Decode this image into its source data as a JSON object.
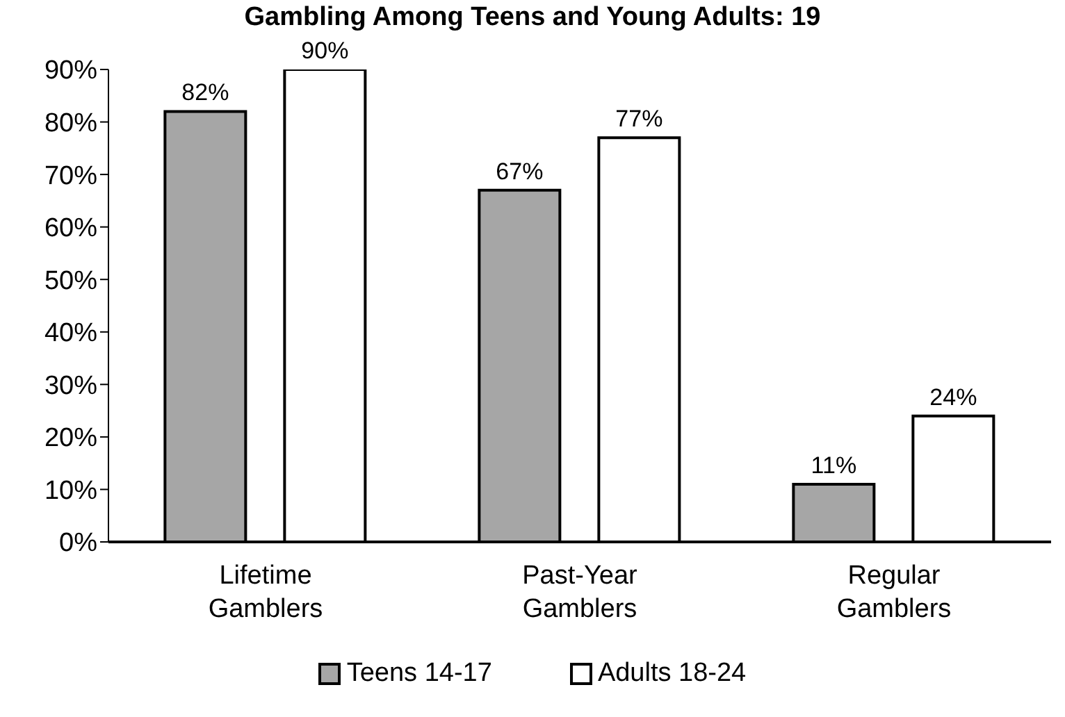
{
  "chart_data": {
    "type": "bar",
    "title": "Gambling Among Teens and Young Adults: 19",
    "categories": [
      "Lifetime Gamblers",
      "Past-Year Gamblers",
      "Regular Gamblers"
    ],
    "series": [
      {
        "name": "Teens 14-17",
        "color": "#a6a6a6",
        "values": [
          82,
          67,
          11
        ],
        "value_labels": [
          "82%",
          "67%",
          "11%"
        ]
      },
      {
        "name": "Adults 18-24",
        "color": "#ffffff",
        "values": [
          90,
          77,
          24
        ],
        "value_labels": [
          "90%",
          "77%",
          "24%"
        ]
      }
    ],
    "ylim": [
      0,
      90
    ],
    "yticks": [
      {
        "value": 0,
        "label": "0%"
      },
      {
        "value": 10,
        "label": "10%"
      },
      {
        "value": 20,
        "label": "20%"
      },
      {
        "value": 30,
        "label": "30%"
      },
      {
        "value": 40,
        "label": "40%"
      },
      {
        "value": 50,
        "label": "50%"
      },
      {
        "value": 60,
        "label": "60%"
      },
      {
        "value": 70,
        "label": "70%"
      },
      {
        "value": 80,
        "label": "80%"
      },
      {
        "value": 90,
        "label": "90%"
      }
    ],
    "grid": false,
    "legend": "bottom"
  }
}
